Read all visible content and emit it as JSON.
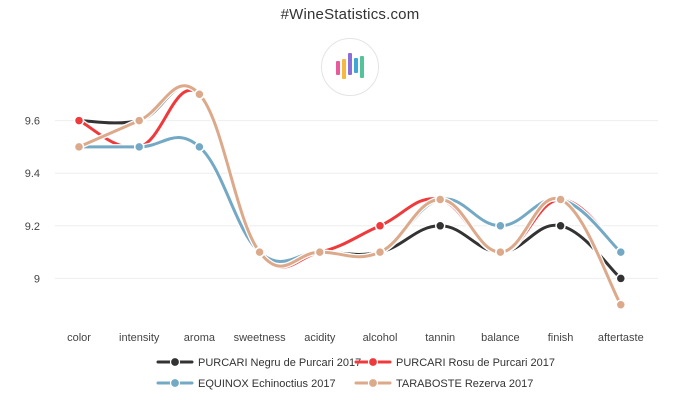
{
  "header": {
    "site_title": "#WineStatistics.com",
    "logo_bar_colors": [
      "#e85a9c",
      "#f5b840",
      "#8a6fd8",
      "#3fa7d6",
      "#53c49a"
    ]
  },
  "chart_data": {
    "type": "line",
    "title": "#WineStatistics.com",
    "categories": [
      "color",
      "intensity",
      "aroma",
      "sweetness",
      "acidity",
      "alcohol",
      "tannin",
      "balance",
      "finish",
      "aftertaste"
    ],
    "y_ticks": [
      9,
      9.2,
      9.4,
      9.6
    ],
    "ylim": [
      8.88,
      9.72
    ],
    "grid": true,
    "legend_position": "bottom",
    "series": [
      {
        "name": "PURCARI Negru de Purcari 2017",
        "color": "#333333",
        "values": [
          9.6,
          9.6,
          9.7,
          9.1,
          9.1,
          9.1,
          9.2,
          9.1,
          9.2,
          9.0
        ]
      },
      {
        "name": "PURCARI Rosu de Purcari 2017",
        "color": "#f0393b",
        "values": [
          9.6,
          9.5,
          9.7,
          9.1,
          9.1,
          9.2,
          9.3,
          9.1,
          9.3,
          9.1
        ]
      },
      {
        "name": "EQUINOX Echinoctius 2017",
        "color": "#74a9c6",
        "values": [
          9.5,
          9.5,
          9.5,
          9.1,
          9.1,
          9.1,
          9.3,
          9.2,
          9.3,
          9.1
        ]
      },
      {
        "name": "TARABOSTE Rezerva 2017",
        "color": "#dca98b",
        "values": [
          9.5,
          9.6,
          9.7,
          9.1,
          9.1,
          9.1,
          9.3,
          9.1,
          9.3,
          8.9
        ]
      }
    ]
  }
}
